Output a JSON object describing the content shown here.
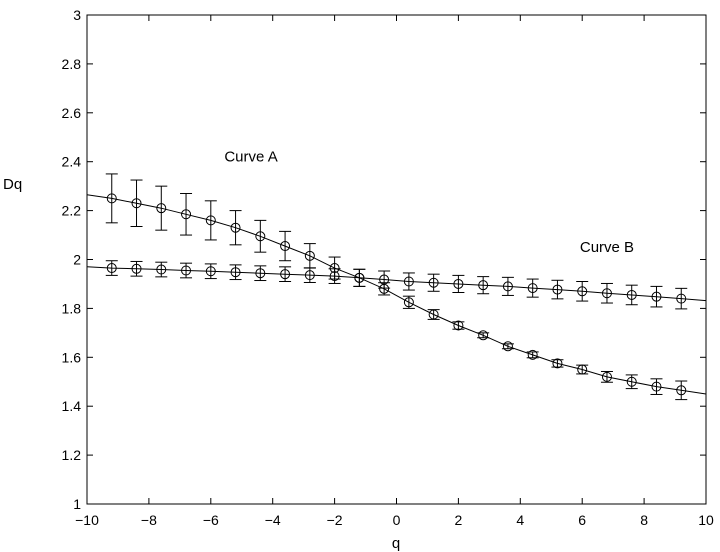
{
  "chart_data": {
    "type": "line",
    "xlabel": "q",
    "ylabel": "Dq",
    "xlim": [
      -10,
      10
    ],
    "ylim": [
      1,
      3
    ],
    "xticks": [
      -10,
      -8,
      -6,
      -4,
      -2,
      0,
      2,
      4,
      6,
      8,
      10
    ],
    "yticks": [
      1,
      1.2,
      1.4,
      1.6,
      1.8,
      2,
      2.2,
      2.4,
      2.6,
      2.8,
      3
    ],
    "xtick_labels": [
      "−10",
      "−8",
      "−6",
      "−4",
      "−2",
      "0",
      "2",
      "4",
      "6",
      "8",
      "10"
    ],
    "ytick_labels": [
      "1",
      "1.2",
      "1.4",
      "1.6",
      "1.8",
      "2",
      "2.2",
      "2.4",
      "2.6",
      "2.8",
      "3"
    ],
    "grid": false,
    "legend": "none",
    "series": [
      {
        "marker": "circle",
        "x": [
          -9.2,
          -8.4,
          -7.6,
          -6.8,
          -6.0,
          -5.2,
          -4.4,
          -3.6,
          -2.8,
          -2.0,
          -1.2,
          -0.4,
          0.4,
          1.2,
          2.0,
          2.8,
          3.6,
          4.4,
          5.2,
          6.0,
          6.8,
          7.6,
          8.4,
          9.2
        ],
        "y": [
          2.25,
          2.23,
          2.21,
          2.185,
          2.16,
          2.13,
          2.095,
          2.055,
          2.015,
          1.965,
          1.925,
          1.88,
          1.825,
          1.775,
          1.73,
          1.69,
          1.645,
          1.61,
          1.575,
          1.55,
          1.52,
          1.5,
          1.48,
          1.465
        ],
        "err": [
          0.1,
          0.095,
          0.09,
          0.085,
          0.08,
          0.07,
          0.065,
          0.06,
          0.05,
          0.045,
          0.035,
          0.025,
          0.025,
          0.02,
          0.015,
          0.01,
          0.01,
          0.012,
          0.015,
          0.018,
          0.022,
          0.028,
          0.032,
          0.038
        ],
        "curve_x": [
          -10,
          -9.2,
          -8.4,
          -7.6,
          -6.8,
          -6.0,
          -5.2,
          -4.4,
          -3.6,
          -2.8,
          -2.0,
          -1.2,
          -0.4,
          0.4,
          1.2,
          2.0,
          2.8,
          3.6,
          4.4,
          5.2,
          6.0,
          6.8,
          7.6,
          8.4,
          9.2,
          10
        ],
        "curve_y": [
          2.265,
          2.25,
          2.23,
          2.21,
          2.185,
          2.16,
          2.13,
          2.095,
          2.055,
          2.015,
          1.965,
          1.925,
          1.88,
          1.825,
          1.775,
          1.73,
          1.69,
          1.645,
          1.61,
          1.575,
          1.55,
          1.52,
          1.5,
          1.48,
          1.465,
          1.45
        ]
      },
      {
        "marker": "circle",
        "x": [
          -9.2,
          -8.4,
          -7.6,
          -6.8,
          -6.0,
          -5.2,
          -4.4,
          -3.6,
          -2.8,
          -2.0,
          -1.2,
          -0.4,
          0.4,
          1.2,
          2.0,
          2.8,
          3.6,
          4.4,
          5.2,
          6.0,
          6.8,
          7.6,
          8.4,
          9.2
        ],
        "y": [
          1.965,
          1.962,
          1.959,
          1.955,
          1.952,
          1.948,
          1.944,
          1.94,
          1.936,
          1.932,
          1.925,
          1.918,
          1.91,
          1.905,
          1.9,
          1.895,
          1.89,
          1.883,
          1.877,
          1.87,
          1.862,
          1.855,
          1.848,
          1.84
        ],
        "err": [
          0.03,
          0.03,
          0.03,
          0.03,
          0.03,
          0.03,
          0.03,
          0.03,
          0.03,
          0.03,
          0.035,
          0.035,
          0.035,
          0.035,
          0.035,
          0.035,
          0.037,
          0.037,
          0.038,
          0.04,
          0.04,
          0.04,
          0.042,
          0.042
        ],
        "curve_x": [
          -10,
          -9.2,
          -8.4,
          -7.6,
          -6.8,
          -6.0,
          -5.2,
          -4.4,
          -3.6,
          -2.8,
          -2.0,
          -1.2,
          -0.4,
          0.4,
          1.2,
          2.0,
          2.8,
          3.6,
          4.4,
          5.2,
          6.0,
          6.8,
          7.6,
          8.4,
          9.2,
          10
        ],
        "curve_y": [
          1.97,
          1.965,
          1.962,
          1.959,
          1.955,
          1.952,
          1.948,
          1.944,
          1.94,
          1.936,
          1.932,
          1.925,
          1.918,
          1.91,
          1.905,
          1.9,
          1.895,
          1.89,
          1.883,
          1.877,
          1.87,
          1.862,
          1.855,
          1.848,
          1.84,
          1.832
        ]
      }
    ],
    "annotations": [
      {
        "text": "Curve A",
        "x": -4.7,
        "y": 2.4
      },
      {
        "text": "Curve B",
        "x": 6.8,
        "y": 2.03
      }
    ]
  }
}
